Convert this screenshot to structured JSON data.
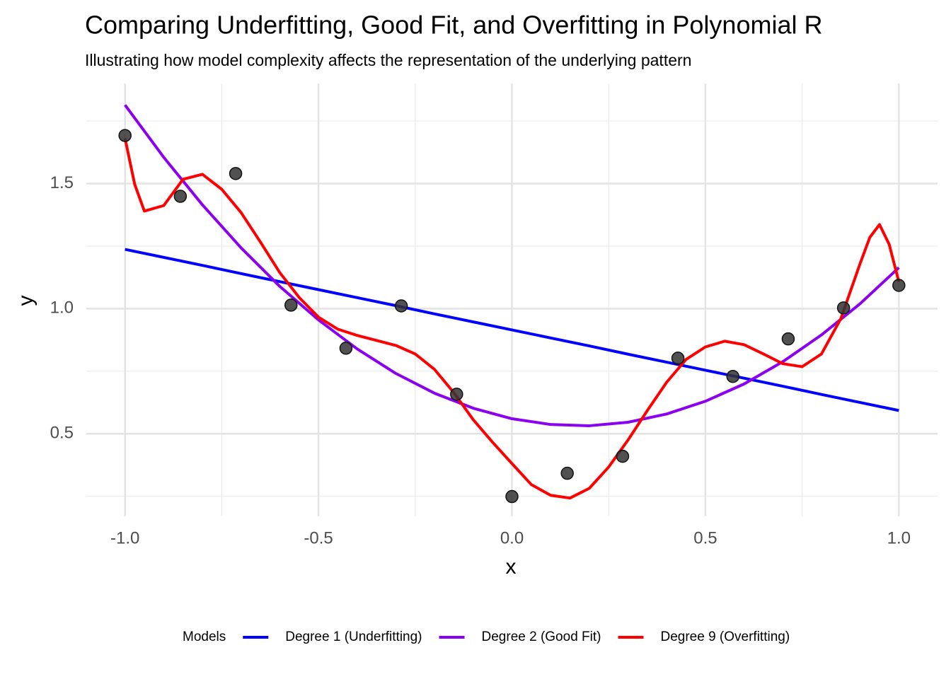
{
  "chart_data": {
    "type": "line",
    "title": "Comparing Underfitting, Good Fit, and Overfitting in Polynomial R",
    "subtitle": "Illustrating how model complexity affects the representation of the underlying pattern",
    "x_label": "x",
    "y_label": "y",
    "legend_title": "Models",
    "legend_position": "bottom",
    "grid": true,
    "xlim": [
      -1.1,
      1.1
    ],
    "ylim": [
      0.17,
      1.9
    ],
    "xticks": [
      {
        "value": -1,
        "label": "-1.0"
      },
      -0.5,
      {
        "value": 0,
        "label": "0.0"
      },
      0.5,
      {
        "value": 1,
        "label": "1.0"
      }
    ],
    "yticks": [
      0.5,
      {
        "value": 1,
        "label": "1.0"
      },
      1.5
    ],
    "minor_xticks": [
      -0.75,
      -0.25,
      0.25,
      0.75
    ],
    "minor_yticks": [
      0.25,
      0.75,
      1.25,
      1.75
    ],
    "points": {
      "color": "#333333",
      "x": [
        -1,
        -0.857,
        -0.714,
        -0.571,
        -0.429,
        -0.286,
        -0.143,
        0,
        0.143,
        0.286,
        0.429,
        0.571,
        0.714,
        0.857,
        1
      ],
      "values": [
        1.692,
        1.449,
        1.54,
        1.014,
        0.842,
        1.011,
        0.658,
        0.249,
        0.342,
        0.41,
        0.802,
        0.729,
        0.879,
        1.003,
        1.093
      ]
    },
    "series": [
      {
        "name": "Degree 1 (Underfitting)",
        "color": "#0000ff",
        "x": [
          -1,
          -0.9,
          -0.8,
          -0.7,
          -0.6,
          -0.5,
          -0.4,
          -0.3,
          -0.2,
          -0.1,
          0,
          0.1,
          0.2,
          0.3,
          0.4,
          0.5,
          0.6,
          0.7,
          0.8,
          0.9,
          1
        ],
        "values": [
          1.237,
          1.205,
          1.173,
          1.14,
          1.108,
          1.076,
          1.044,
          1.012,
          0.979,
          0.947,
          0.915,
          0.883,
          0.851,
          0.818,
          0.786,
          0.754,
          0.722,
          0.69,
          0.657,
          0.625,
          0.593
        ]
      },
      {
        "name": "Degree 2 (Good Fit)",
        "color": "#8b00ee",
        "x": [
          -1,
          -0.9,
          -0.8,
          -0.7,
          -0.6,
          -0.5,
          -0.4,
          -0.3,
          -0.2,
          -0.1,
          0,
          0.1,
          0.2,
          0.3,
          0.4,
          0.5,
          0.6,
          0.7,
          0.8,
          0.9,
          1
        ],
        "values": [
          1.814,
          1.605,
          1.415,
          1.243,
          1.089,
          0.955,
          0.839,
          0.741,
          0.662,
          0.602,
          0.56,
          0.537,
          0.532,
          0.546,
          0.579,
          0.63,
          0.699,
          0.788,
          0.895,
          1.02,
          1.164
        ]
      },
      {
        "name": "Degree 9 (Overfitting)",
        "color": "#ff0000",
        "x": [
          -1,
          -0.975,
          -0.95,
          -0.9,
          -0.85,
          -0.8,
          -0.75,
          -0.7,
          -0.65,
          -0.6,
          -0.55,
          -0.5,
          -0.45,
          -0.4,
          -0.35,
          -0.3,
          -0.25,
          -0.2,
          -0.15,
          -0.1,
          -0.05,
          0,
          0.05,
          0.1,
          0.15,
          0.2,
          0.25,
          0.3,
          0.35,
          0.4,
          0.45,
          0.5,
          0.55,
          0.6,
          0.65,
          0.7,
          0.75,
          0.8,
          0.85,
          0.9,
          0.925,
          0.95,
          0.975,
          1
        ],
        "values": [
          1.681,
          1.497,
          1.39,
          1.412,
          1.517,
          1.537,
          1.477,
          1.384,
          1.266,
          1.144,
          1.045,
          0.966,
          0.918,
          0.893,
          0.873,
          0.853,
          0.819,
          0.757,
          0.664,
          0.556,
          0.466,
          0.381,
          0.297,
          0.254,
          0.243,
          0.282,
          0.367,
          0.475,
          0.593,
          0.706,
          0.797,
          0.847,
          0.87,
          0.856,
          0.819,
          0.78,
          0.768,
          0.819,
          0.96,
          1.181,
          1.285,
          1.336,
          1.257,
          1.107
        ]
      }
    ]
  }
}
